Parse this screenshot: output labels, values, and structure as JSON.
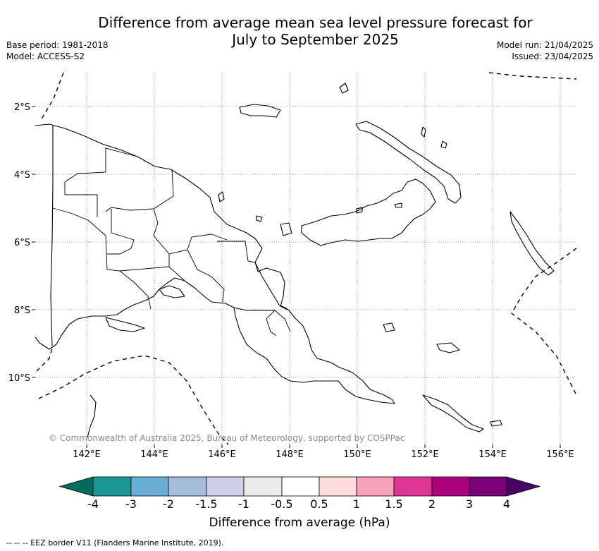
{
  "title_line1": "Difference from average mean sea level pressure forecast for",
  "title_line2": "July to September 2025",
  "meta_left": {
    "base_period": "Base period: 1981-2018",
    "model": "Model: ACCESS-S2"
  },
  "meta_right": {
    "model_run": "Model run: 21/04/2025",
    "issued": "Issued: 23/04/2025"
  },
  "copyright": "© Commonwealth of Australia 2025, Bureau of Meteorology, supported by COSPPac",
  "lat_labels": [
    "2°S",
    "4°S",
    "6°S",
    "8°S",
    "10°S"
  ],
  "lon_labels": [
    "142°E",
    "144°E",
    "146°E",
    "148°E",
    "150°E",
    "152°E",
    "154°E",
    "156°E"
  ],
  "colorbar": {
    "title": "Difference from average (hPa)",
    "tick_labels": [
      "-4",
      "-3",
      "-2",
      "-1.5",
      "-1",
      "-0.5",
      "0.5",
      "1",
      "1.5",
      "2",
      "3",
      "4"
    ],
    "colors": [
      "#1a9696",
      "#6aaed6",
      "#a5bddb",
      "#cfcfe8",
      "#ececec",
      "#ffffff",
      "#ffdddd",
      "#f8a1bd",
      "#de3596",
      "#ad007d",
      "#7a0177"
    ],
    "under_color": "#016c59",
    "over_color": "#49006a"
  },
  "legend_note": "--  --  -- EEZ border V11 (Flanders Marine Institute, 2019)."
}
